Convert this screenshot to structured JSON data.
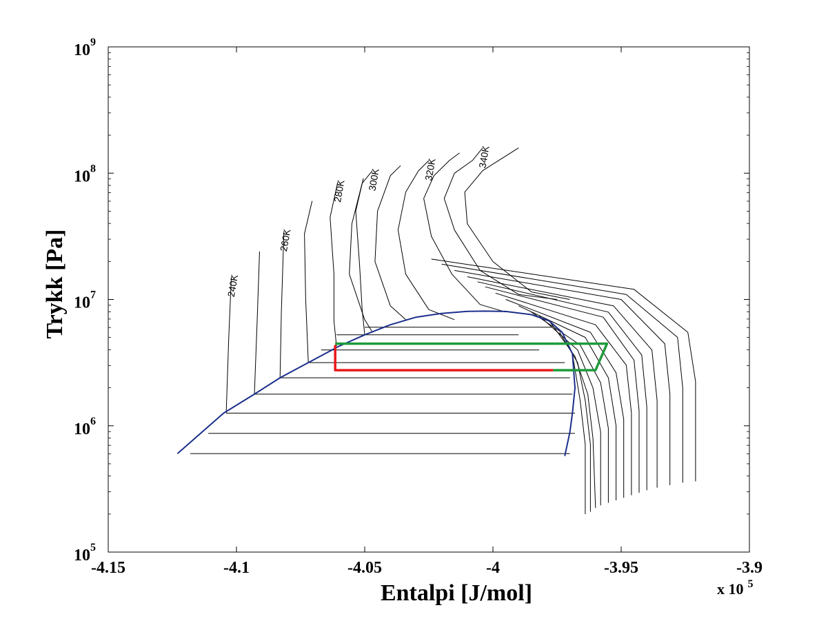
{
  "chart_data": {
    "type": "line",
    "xlabel": "Entalpi [J/mol]",
    "ylabel": "Trykk [Pa]",
    "x_multiplier_label": "x 10",
    "x_multiplier_exp": "5",
    "x_scale_factor": 100000,
    "xlim": [
      -4.15,
      -3.9
    ],
    "ylim_log10": [
      5,
      9
    ],
    "y_scale": "log",
    "grid": false,
    "x_ticks": [
      -4.15,
      -4.1,
      -4.05,
      -4,
      -3.95,
      -3.9
    ],
    "x_tick_labels": [
      "-4.15",
      "-4.1",
      "-4.05",
      "-4",
      "-3.95",
      "-3.9"
    ],
    "y_ticks_log10": [
      5,
      6,
      7,
      8,
      9
    ],
    "y_tick_base": "10",
    "y_tick_exps": [
      "5",
      "6",
      "7",
      "8",
      "9"
    ],
    "colors": {
      "dome": "#1a2e8a",
      "isotherm": "#000000",
      "cycle_low": "#e8191a",
      "cycle_high": "#1f9a3a"
    },
    "saturation_dome": {
      "x": [
        -4.123,
        -4.105,
        -4.093,
        -4.083,
        -4.072,
        -4.06,
        -4.05,
        -4.04,
        -4.03,
        -4.02,
        -4.01,
        -4.003,
        -3.995,
        -3.985,
        -3.978,
        -3.973,
        -3.969,
        -3.968,
        -3.969,
        -3.97,
        -3.972
      ],
      "log10p": [
        5.78,
        6.1,
        6.25,
        6.38,
        6.5,
        6.63,
        6.72,
        6.8,
        6.86,
        6.89,
        6.906,
        6.908,
        6.905,
        6.88,
        6.83,
        6.74,
        6.57,
        6.3,
        6.1,
        5.95,
        5.76
      ]
    },
    "isotherms": [
      {
        "label": "240K",
        "x": [
          -4.104,
          -4.103,
          -4.102
        ],
        "log10p": [
          6.1,
          6.7,
          7.18
        ]
      },
      {
        "label": "",
        "x": [
          -4.093,
          -4.092,
          -4.091
        ],
        "log10p": [
          6.25,
          6.8,
          7.38
        ]
      },
      {
        "label": "260K",
        "x": [
          -4.083,
          -4.0825,
          -4.0815
        ],
        "log10p": [
          6.38,
          6.9,
          7.54
        ]
      },
      {
        "label": "",
        "x": [
          -4.072,
          -4.073,
          -4.0735,
          -4.0705
        ],
        "log10p": [
          6.5,
          7.0,
          7.52,
          7.78
        ]
      },
      {
        "label": "280K",
        "x": [
          -4.061,
          -4.062,
          -4.062,
          -4.0635,
          -4.0605
        ],
        "log10p": [
          6.63,
          6.83,
          7.2,
          7.65,
          7.93
        ]
      },
      {
        "label": "",
        "x": [
          -4.05,
          -4.051,
          -4.052,
          -4.0535,
          -4.0505
        ],
        "log10p": [
          6.72,
          6.92,
          7.27,
          7.7,
          7.96
        ]
      },
      {
        "label": "300K",
        "x": [
          -4.047,
          -4.05,
          -4.056,
          -4.055,
          -4.051,
          -4.047
        ],
        "log10p": [
          6.74,
          6.84,
          7.2,
          7.6,
          7.92,
          8.02
        ]
      },
      {
        "label": "",
        "x": [
          -4.034,
          -4.04,
          -4.046,
          -4.045,
          -4.04,
          -4.036
        ],
        "log10p": [
          6.84,
          6.95,
          7.3,
          7.7,
          7.98,
          8.06
        ]
      },
      {
        "label": "320K",
        "x": [
          -4.015,
          -4.025,
          -4.034,
          -4.037,
          -4.034,
          -4.029,
          -4.025
        ],
        "log10p": [
          6.84,
          6.92,
          7.2,
          7.55,
          7.85,
          8.02,
          8.1
        ]
      },
      {
        "label": "",
        "x": [
          -3.995,
          -4.005,
          -4.016,
          -4.024,
          -4.027,
          -4.023,
          -4.017,
          -4.013
        ],
        "log10p": [
          6.9,
          6.96,
          7.2,
          7.5,
          7.8,
          7.98,
          8.1,
          8.16
        ]
      },
      {
        "label": "340K",
        "x": [
          -3.975,
          -3.99,
          -4.005,
          -4.015,
          -4.019,
          -4.015,
          -4.008,
          -4.004
        ],
        "log10p": [
          7.0,
          7.04,
          7.23,
          7.55,
          7.8,
          8.0,
          8.1,
          8.2
        ]
      },
      {
        "label": "",
        "x": [
          -3.97,
          -3.985,
          -4.0,
          -4.01,
          -4.011,
          -4.004,
          -3.99
        ],
        "log10p": [
          7.0,
          7.06,
          7.3,
          7.6,
          7.85,
          8.02,
          8.2
        ]
      }
    ],
    "superheated": [
      {
        "x": [
          -3.969,
          -3.966,
          -3.964,
          -3.964
        ],
        "log10p": [
          6.57,
          6.2,
          5.85,
          5.3
        ]
      },
      {
        "x": [
          -3.974,
          -3.967,
          -3.964,
          -3.962,
          -3.962
        ],
        "log10p": [
          6.74,
          6.5,
          6.2,
          5.85,
          5.32
        ]
      },
      {
        "x": [
          -3.978,
          -3.968,
          -3.963,
          -3.961,
          -3.96
        ],
        "log10p": [
          6.83,
          6.55,
          6.25,
          5.9,
          5.35
        ]
      },
      {
        "x": [
          -3.982,
          -3.967,
          -3.961,
          -3.958,
          -3.958
        ],
        "log10p": [
          6.87,
          6.6,
          6.3,
          5.95,
          5.37
        ]
      },
      {
        "x": [
          -3.985,
          -3.966,
          -3.958,
          -3.955,
          -3.955
        ],
        "log10p": [
          6.9,
          6.64,
          6.34,
          5.98,
          5.39
        ]
      },
      {
        "x": [
          -3.99,
          -3.964,
          -3.955,
          -3.952,
          -3.952
        ],
        "log10p": [
          6.95,
          6.7,
          6.38,
          6.0,
          5.41
        ]
      },
      {
        "x": [
          -3.995,
          -3.962,
          -3.952,
          -3.949,
          -3.949
        ],
        "log10p": [
          7.0,
          6.74,
          6.42,
          6.05,
          5.43
        ]
      },
      {
        "x": [
          -3.999,
          -3.96,
          -3.948,
          -3.946,
          -3.946
        ],
        "log10p": [
          7.05,
          6.8,
          6.48,
          6.1,
          5.45
        ]
      },
      {
        "x": [
          -4.003,
          -3.957,
          -3.945,
          -3.943,
          -3.943
        ],
        "log10p": [
          7.1,
          6.86,
          6.52,
          6.12,
          5.47
        ]
      },
      {
        "x": [
          -4.006,
          -3.955,
          -3.942,
          -3.94,
          -3.94
        ],
        "log10p": [
          7.14,
          6.9,
          6.56,
          6.15,
          5.49
        ]
      },
      {
        "x": [
          -4.01,
          -3.953,
          -3.938,
          -3.936,
          -3.936
        ],
        "log10p": [
          7.18,
          6.95,
          6.6,
          6.2,
          5.51
        ]
      },
      {
        "x": [
          -4.015,
          -3.95,
          -3.933,
          -3.931,
          -3.931
        ],
        "log10p": [
          7.23,
          7.0,
          6.65,
          6.25,
          5.53
        ]
      },
      {
        "x": [
          -4.02,
          -3.948,
          -3.928,
          -3.926,
          -3.926
        ],
        "log10p": [
          7.28,
          7.04,
          6.7,
          6.3,
          5.55
        ]
      },
      {
        "x": [
          -4.024,
          -3.945,
          -3.924,
          -3.921,
          -3.921
        ],
        "log10p": [
          7.32,
          7.08,
          6.74,
          6.35,
          5.56
        ]
      }
    ],
    "two_phase_tielines": [
      {
        "x": [
          -4.061,
          -3.99
        ],
        "log10p": [
          6.72,
          6.72
        ]
      },
      {
        "x": [
          -4.072,
          -3.972
        ],
        "log10p": [
          6.5,
          6.5
        ]
      },
      {
        "x": [
          -4.083,
          -3.97
        ],
        "log10p": [
          6.38,
          6.38
        ]
      },
      {
        "x": [
          -4.093,
          -3.969
        ],
        "log10p": [
          6.25,
          6.25
        ]
      },
      {
        "x": [
          -4.104,
          -3.968
        ],
        "log10p": [
          6.1,
          6.1
        ]
      },
      {
        "x": [
          -4.111,
          -3.968
        ],
        "log10p": [
          5.94,
          5.94
        ]
      },
      {
        "x": [
          -4.118,
          -3.97
        ],
        "log10p": [
          5.78,
          5.78
        ]
      },
      {
        "x": [
          -4.05,
          -3.977
        ],
        "log10p": [
          6.78,
          6.78
        ]
      },
      {
        "x": [
          -4.067,
          -3.982
        ],
        "log10p": [
          6.6,
          6.6
        ]
      }
    ],
    "cycle": {
      "low_pressure_red": {
        "x": [
          -4.0615,
          -4.0615,
          -3.9765
        ],
        "log10p": [
          6.64,
          6.44,
          6.44
        ]
      },
      "high_pressure_green": {
        "x": [
          -3.9765,
          -3.96,
          -3.9555,
          -4.0615
        ],
        "log10p": [
          6.44,
          6.44,
          6.65,
          6.65
        ]
      }
    }
  }
}
